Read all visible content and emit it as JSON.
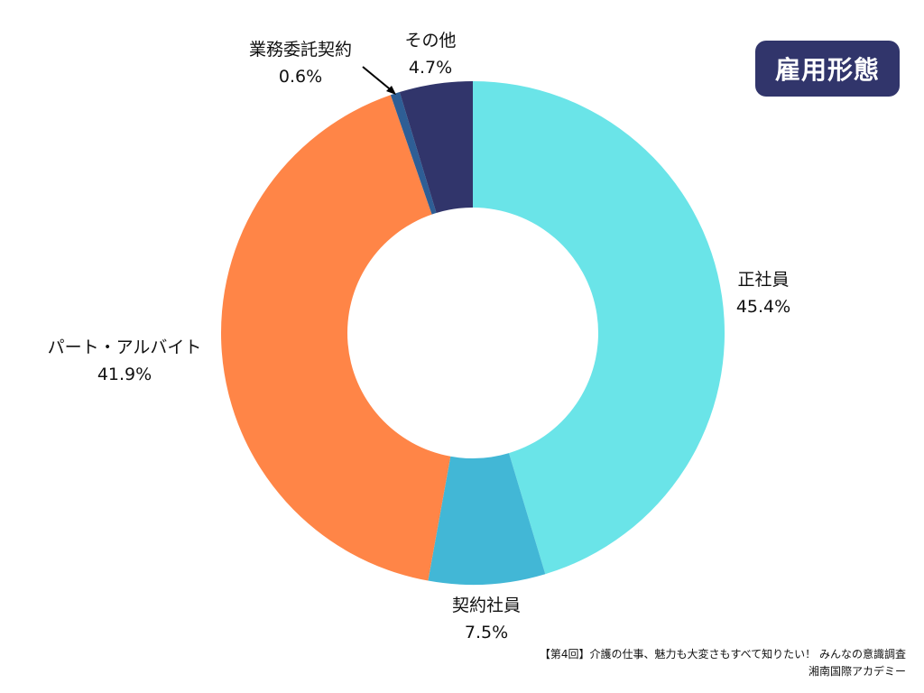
{
  "badge": {
    "title": "雇用形態",
    "color": "#31356b"
  },
  "chart_data": {
    "type": "pie",
    "variant": "donut",
    "title": "雇用形態",
    "start": "top",
    "direction": "clockwise",
    "slices": [
      {
        "label": "正社員",
        "value": 45.4,
        "value_label": "45.4%",
        "color": "#6ae4e8"
      },
      {
        "label": "契約社員",
        "value": 7.5,
        "value_label": "7.5%",
        "color": "#42b7d6"
      },
      {
        "label": "パート・アルバイト",
        "value": 41.9,
        "value_label": "41.9%",
        "color": "#ff8547"
      },
      {
        "label": "業務委託契約",
        "value": 0.6,
        "value_label": "0.6%",
        "color": "#2e5e95"
      },
      {
        "label": "その他",
        "value": 4.7,
        "value_label": "4.7%",
        "color": "#31356b"
      }
    ]
  },
  "footer": {
    "line1": "【第4回】介護の仕事、魅力も大変さもすべて知りたい！ みんなの意識調査",
    "line2": "湘南国際アカデミー"
  }
}
